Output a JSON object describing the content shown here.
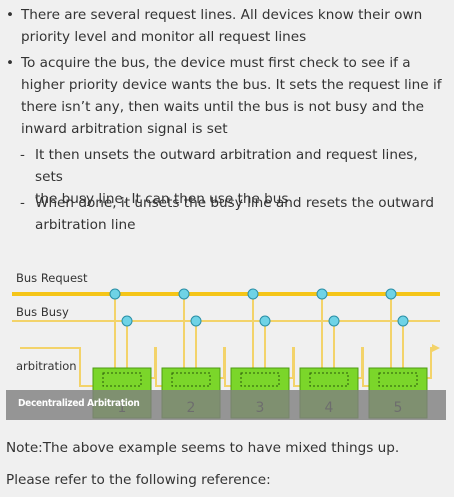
{
  "bullets": [
    {
      "marker": "•",
      "lines": [
        "There are several request lines. All devices know their own",
        "priority level and monitor all request lines"
      ]
    },
    {
      "marker": "•",
      "lines": [
        "To acquire the bus, the device must first check to see if a",
        "higher priority device wants the bus. It sets the request line if",
        "there isn’t any, then waits until the bus is not busy and the",
        "inward arbitration signal is set"
      ]
    }
  ],
  "subbullets": [
    {
      "marker": "-",
      "lines": [
        "It then unsets the outward arbitration and request lines, sets",
        "the busy line. It can then use the bus"
      ]
    },
    {
      "marker": "-",
      "lines": [
        "When done, it unsets the busy line and resets the outward",
        "arbitration line"
      ]
    }
  ],
  "diagram": {
    "labels": {
      "bus_request": "Bus Request",
      "bus_busy": "Bus Busy",
      "arbitration": "arbitration"
    },
    "devices": [
      "1",
      "2",
      "3",
      "4",
      "5"
    ],
    "caption": "Decentralized Arbitration",
    "colors": {
      "request_line": "#f5c518",
      "busy_line": "#f3d36a",
      "device_box": "#7bd62a",
      "device_box_border": "#4e9b12",
      "node": "#6fd3e6"
    }
  },
  "footer": {
    "note": "Note:The above example seems to have mixed things up.",
    "reference": "Please refer to the following reference:"
  }
}
